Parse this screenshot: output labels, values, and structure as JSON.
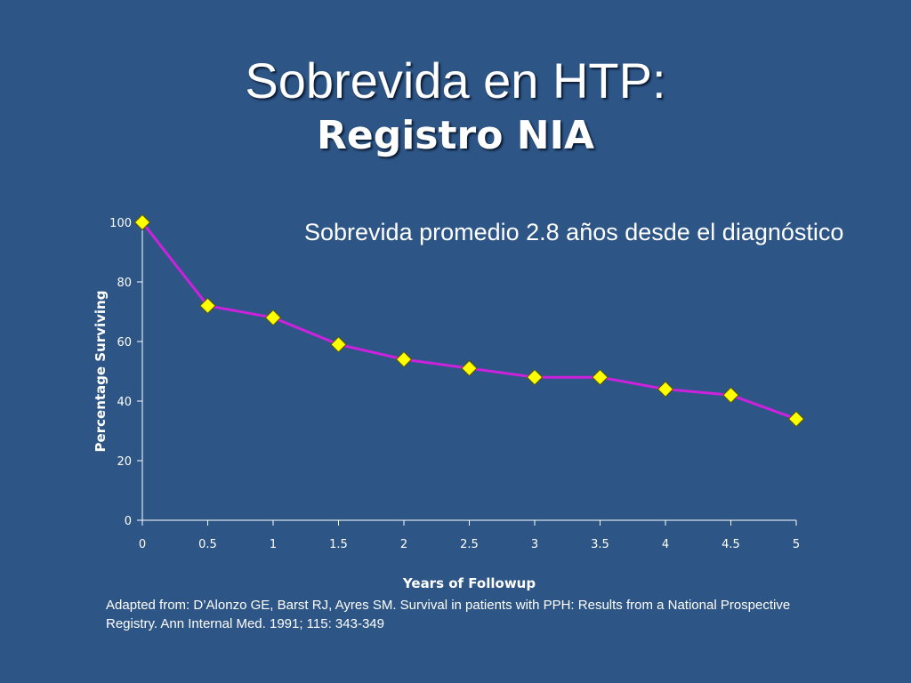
{
  "slide": {
    "title_line1": "Sobrevida en HTP:",
    "title_line2": "Registro NIA",
    "subtitle": "Sobrevida promedio 2.8 años desde el diagnóstico",
    "caption": "Adapted from: D’Alonzo GE, Barst RJ, Ayres SM. Survival in patients with PPH:  Results from a National Prospective Registry.  Ann Internal Med. 1991; 115: 343-349"
  },
  "chart_data": {
    "type": "line",
    "title": "",
    "xlabel": "Years of Followup",
    "ylabel": "Percentage Surviving",
    "xlim": [
      0,
      5
    ],
    "ylim": [
      0,
      100
    ],
    "x_ticks": [
      "0",
      "0.5",
      "1",
      "1.5",
      "2",
      "2.5",
      "3",
      "3.5",
      "4",
      "4.5",
      "5"
    ],
    "y_ticks": [
      "0",
      "20",
      "40",
      "60",
      "80",
      "100"
    ],
    "grid": false,
    "series": [
      {
        "x": [
          0,
          0.5,
          1,
          1.5,
          2,
          2.5,
          3,
          3.5,
          4,
          4.5,
          5
        ],
        "y": [
          100,
          72,
          68,
          59,
          54,
          51,
          48,
          48,
          44,
          42,
          34
        ]
      }
    ],
    "colors": {
      "line": "#cc22dd",
      "marker_fill": "#ffff00",
      "marker_stroke": "#5a5a00",
      "axis": "#ffffff",
      "background": "#2d5585"
    },
    "marker": "diamond"
  }
}
